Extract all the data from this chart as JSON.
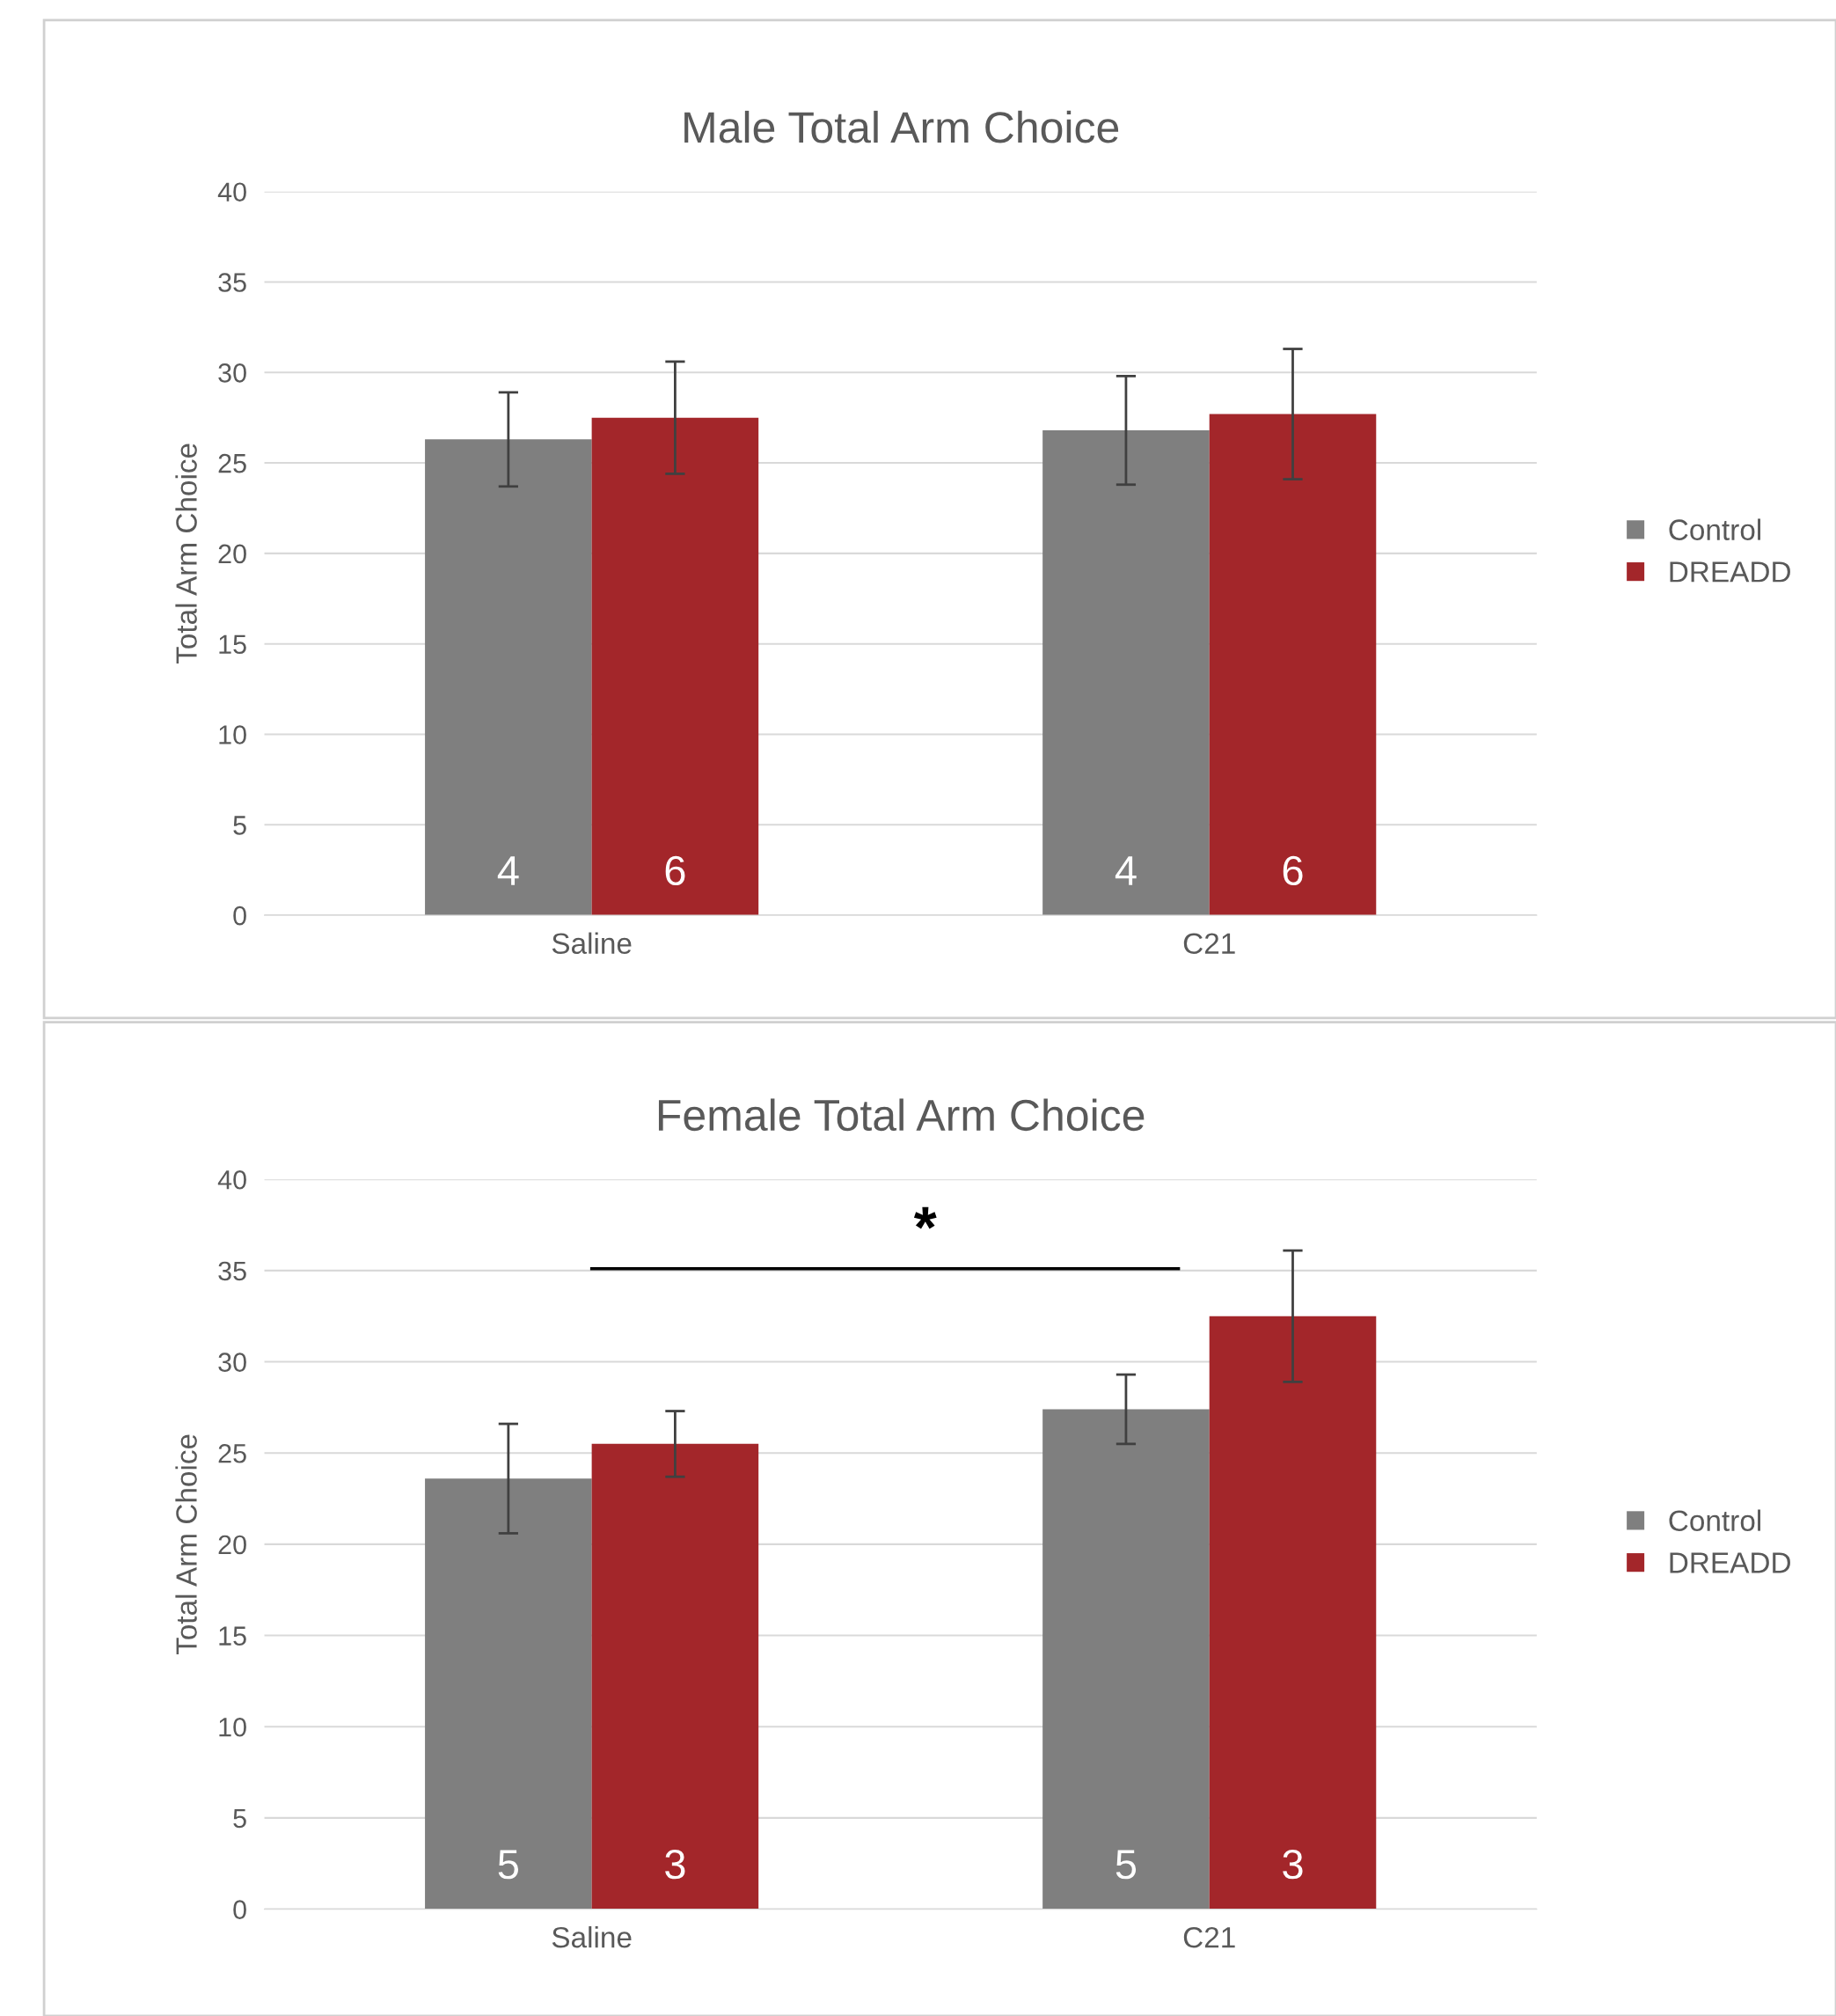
{
  "chart_data": [
    {
      "type": "bar",
      "title": "Male Total Arm Choice",
      "ylabel": "Total Arm Choice",
      "categories": [
        "Saline",
        "C21"
      ],
      "series": [
        {
          "name": "Control",
          "color": "#7f7f7f",
          "values": [
            26.3,
            26.8
          ],
          "errors": [
            2.6,
            3.0
          ]
        },
        {
          "name": "DREADD",
          "color": "#a3262a",
          "values": [
            27.5,
            27.7
          ],
          "errors": [
            3.1,
            3.6
          ]
        }
      ],
      "ylim": [
        0,
        40
      ],
      "yticks": [
        0,
        5,
        10,
        15,
        20,
        25,
        30,
        35,
        40
      ],
      "grid": "y",
      "legend": "right",
      "annotations": [
        "4",
        "6",
        "4",
        "6"
      ]
    },
    {
      "type": "bar",
      "title": "Female Total Arm Choice",
      "ylabel": "Total Arm Choice",
      "categories": [
        "Saline",
        "C21"
      ],
      "series": [
        {
          "name": "Control",
          "color": "#7f7f7f",
          "values": [
            23.6,
            27.4
          ],
          "errors": [
            3.0,
            1.9
          ]
        },
        {
          "name": "DREADD",
          "color": "#a3262a",
          "values": [
            25.5,
            32.5
          ],
          "errors": [
            1.8,
            3.6
          ]
        }
      ],
      "ylim": [
        0,
        40
      ],
      "yticks": [
        0,
        5,
        10,
        15,
        20,
        25,
        30,
        35,
        40
      ],
      "grid": "y",
      "legend": "right",
      "annotations": [
        "5",
        "3",
        "5",
        "3",
        "*"
      ]
    }
  ]
}
